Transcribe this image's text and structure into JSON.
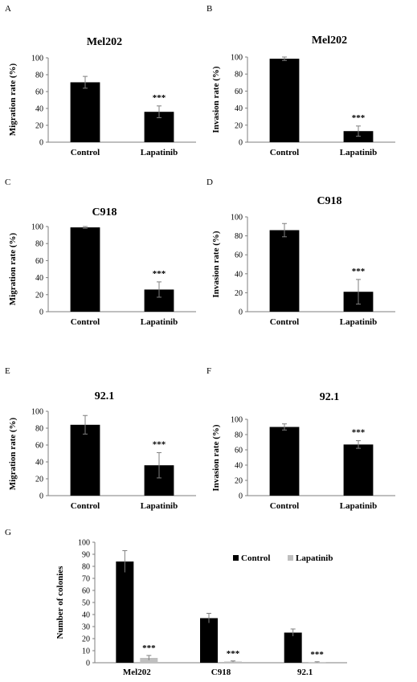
{
  "chart_data": [
    {
      "panel": "A",
      "type": "bar",
      "title": "Mel202",
      "ylabel": "Migration rate (%)",
      "categories": [
        "Control",
        "Lapatinib"
      ],
      "values": [
        71,
        36
      ],
      "errors": [
        7,
        7
      ],
      "significance": [
        "",
        "***"
      ],
      "ylim": [
        0,
        100
      ],
      "yticks": [
        0,
        20,
        40,
        60,
        80,
        100
      ],
      "bar_color": "#000000",
      "grid": false
    },
    {
      "panel": "B",
      "type": "bar",
      "title": "Mel202",
      "ylabel": "Invasion rate (%)",
      "categories": [
        "Control",
        "Lapatinib"
      ],
      "values": [
        98,
        13
      ],
      "errors": [
        2,
        6
      ],
      "significance": [
        "",
        "***"
      ],
      "ylim": [
        0,
        100
      ],
      "yticks": [
        0,
        20,
        40,
        60,
        80,
        100
      ],
      "bar_color": "#000000",
      "grid": false
    },
    {
      "panel": "C",
      "type": "bar",
      "title": "C918",
      "ylabel": "Migration rate (%)",
      "categories": [
        "Control",
        "Lapatinib"
      ],
      "values": [
        99,
        26
      ],
      "errors": [
        1,
        9
      ],
      "significance": [
        "",
        "***"
      ],
      "ylim": [
        0,
        100
      ],
      "yticks": [
        0,
        20,
        40,
        60,
        80,
        100
      ],
      "bar_color": "#000000",
      "grid": false
    },
    {
      "panel": "D",
      "type": "bar",
      "title": "C918",
      "ylabel": "Invasion rate (%)",
      "categories": [
        "Control",
        "Lapatinib"
      ],
      "values": [
        86,
        21
      ],
      "errors": [
        7,
        13
      ],
      "significance": [
        "",
        "***"
      ],
      "ylim": [
        0,
        100
      ],
      "yticks": [
        0,
        20,
        40,
        60,
        80,
        100
      ],
      "bar_color": "#000000",
      "grid": false
    },
    {
      "panel": "E",
      "type": "bar",
      "title": "92.1",
      "ylabel": "Migration rate (%)",
      "categories": [
        "Control",
        "Lapatinib"
      ],
      "values": [
        84,
        36
      ],
      "errors": [
        11,
        15
      ],
      "significance": [
        "",
        "***"
      ],
      "ylim": [
        0,
        100
      ],
      "yticks": [
        0,
        20,
        40,
        60,
        80,
        100
      ],
      "bar_color": "#000000",
      "grid": false
    },
    {
      "panel": "F",
      "type": "bar",
      "title": "92.1",
      "ylabel": "Invasion rate (%)",
      "categories": [
        "Control",
        "Lapatinib"
      ],
      "values": [
        90,
        67
      ],
      "errors": [
        4,
        5
      ],
      "significance": [
        "",
        "***"
      ],
      "ylim": [
        0,
        100
      ],
      "yticks": [
        0,
        20,
        40,
        60,
        80,
        100
      ],
      "bar_color": "#000000",
      "grid": false
    },
    {
      "panel": "G",
      "type": "bar",
      "title": "",
      "ylabel": "Number of colonies",
      "categories": [
        "Mel202",
        "C918",
        "92.1"
      ],
      "series": [
        {
          "name": "Control",
          "values": [
            84,
            37,
            25
          ],
          "errors": [
            9,
            4,
            3
          ],
          "color": "#000000"
        },
        {
          "name": "Lapatinib",
          "values": [
            4,
            1,
            0.5
          ],
          "errors": [
            2,
            0.5,
            0.3
          ],
          "color": "#bfbfbf"
        }
      ],
      "significance": [
        "***",
        "***",
        "***"
      ],
      "ylim": [
        0,
        100
      ],
      "yticks": [
        0,
        10,
        20,
        30,
        40,
        50,
        60,
        70,
        80,
        90,
        100
      ],
      "legend_position": "top-right",
      "grid": false
    }
  ]
}
